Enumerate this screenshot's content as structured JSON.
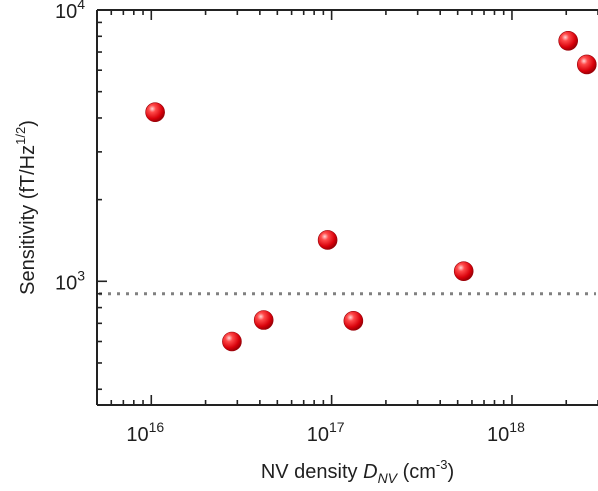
{
  "chart_data": {
    "type": "scatter",
    "title": "",
    "x_scale": "log",
    "y_scale": "log",
    "xlim": [
      5000000000000000.0,
      3e+18
    ],
    "ylim": [
      350,
      10000
    ],
    "xlabel": {
      "prefix": "NV density ",
      "var": "D",
      "sub": "NV",
      "unit_open": " (cm",
      "unit_sup": "-3",
      "unit_close": ")"
    },
    "ylabel": {
      "main": "Sensitivity (fT/Hz",
      "sup": "1/2",
      "close": ")"
    },
    "x_ticks": [
      {
        "value": 1e+16,
        "base": "10",
        "exp": "16"
      },
      {
        "value": 1e+17,
        "base": "10",
        "exp": "17"
      },
      {
        "value": 1e+18,
        "base": "10",
        "exp": "18"
      }
    ],
    "y_ticks": [
      {
        "value": 1000,
        "base": "10",
        "exp": "3"
      },
      {
        "value": 10000,
        "base": "10",
        "exp": "4"
      }
    ],
    "points": [
      {
        "x": 1.05e+16,
        "y": 4200
      },
      {
        "x": 2.8e+16,
        "y": 600
      },
      {
        "x": 4.2e+16,
        "y": 720
      },
      {
        "x": 9.5e+16,
        "y": 1420
      },
      {
        "x": 1.32e+17,
        "y": 715
      },
      {
        "x": 5.4e+17,
        "y": 1090
      },
      {
        "x": 2.05e+18,
        "y": 7700
      },
      {
        "x": 2.6e+18,
        "y": 6300
      }
    ],
    "reference_line": {
      "y": 900,
      "style": "dotted"
    },
    "colors": {
      "marker": "#e8141b",
      "reference_line": "#808080",
      "axis": "#222222"
    },
    "grid": false,
    "legend": "none"
  }
}
